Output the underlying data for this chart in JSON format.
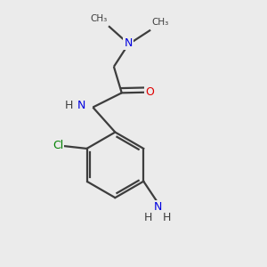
{
  "background_color": "#ebebeb",
  "bond_color": "#3d3d3d",
  "atom_colors": {
    "N": "#0000e0",
    "O": "#e00000",
    "Cl": "#008000",
    "C": "#3d3d3d",
    "H": "#3d3d3d"
  },
  "figsize": [
    3.0,
    3.0
  ],
  "dpi": 100,
  "lw": 1.6
}
